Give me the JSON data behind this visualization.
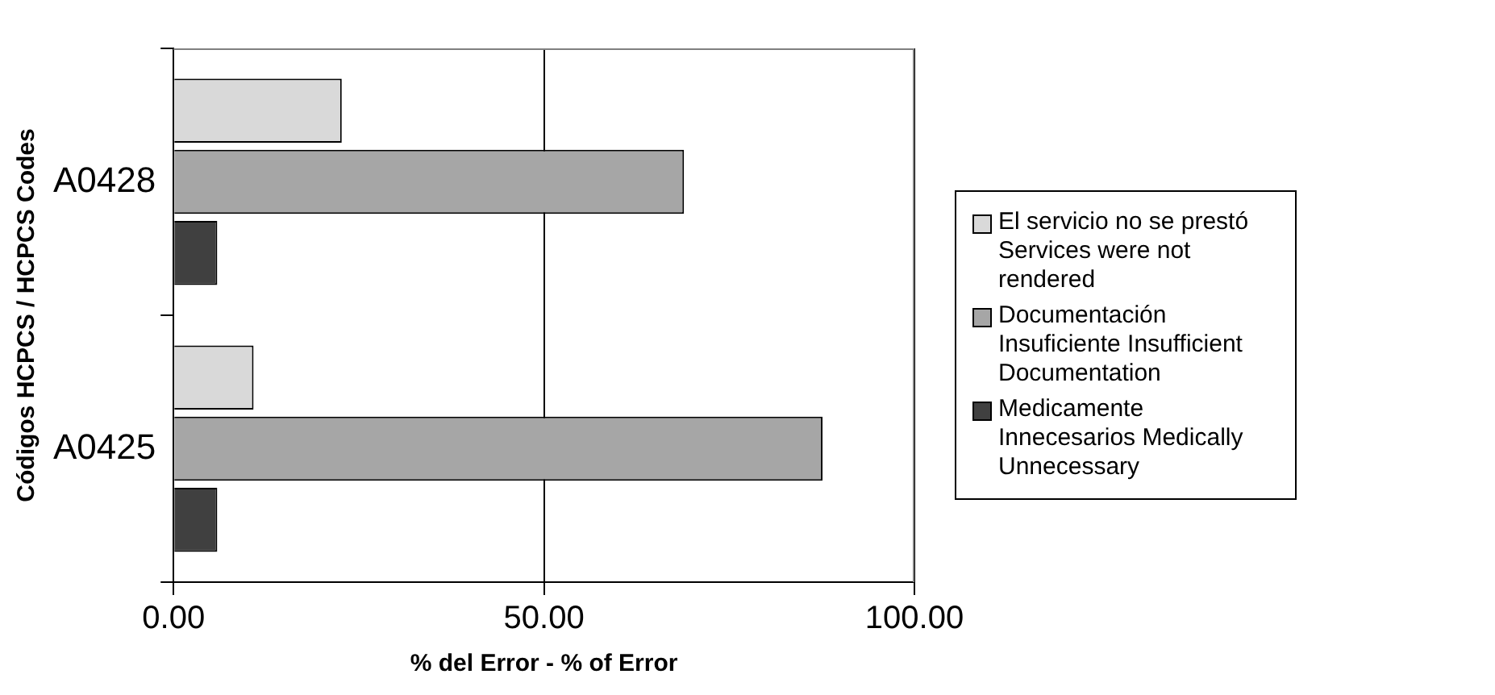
{
  "chart_data": {
    "type": "bar",
    "orientation": "horizontal",
    "xlabel": "% del Error - % of Error",
    "ylabel": "Códigos HCPCS / HCPCS Codes",
    "categories": [
      "A0428",
      "A0425"
    ],
    "series": [
      {
        "name": "El servicio no se prestó Services were not rendered",
        "color": "#d9d9d9",
        "values": [
          22.7,
          10.8
        ]
      },
      {
        "name": "Documentación Insuficiente Insufficient Documentation",
        "color": "#a6a6a6",
        "values": [
          68.9,
          87.6
        ]
      },
      {
        "name": "Medicamente Innecesarios Medically Unnecessary",
        "color": "#404040",
        "values": [
          5.9,
          5.9
        ]
      }
    ],
    "xlim": [
      0,
      100
    ],
    "xticks": [
      {
        "value": 0,
        "label": "0.00"
      },
      {
        "value": 50,
        "label": "50.00"
      },
      {
        "value": 100,
        "label": "100.00"
      }
    ],
    "grid": "x",
    "legend": "right"
  }
}
